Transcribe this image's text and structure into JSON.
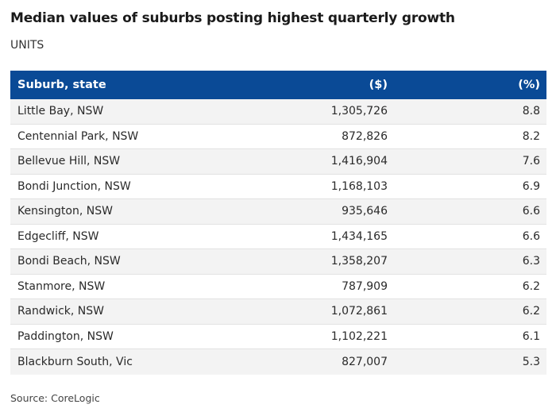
{
  "title": "Median values of suburbs posting highest quarterly growth",
  "subtitle": "UNITS",
  "source": "Source: CoreLogic",
  "colors": {
    "header_bg": "#0a4a96",
    "header_text": "#ffffff",
    "row_alt_bg": "#f3f3f3"
  },
  "chart_data": {
    "type": "table",
    "columns": [
      "Suburb, state",
      "($)",
      "(%)"
    ],
    "rows": [
      [
        "Little Bay, NSW",
        "1,305,726",
        "8.8"
      ],
      [
        "Centennial Park, NSW",
        "872,826",
        "8.2"
      ],
      [
        "Bellevue Hill, NSW",
        "1,416,904",
        "7.6"
      ],
      [
        "Bondi Junction, NSW",
        "1,168,103",
        "6.9"
      ],
      [
        "Kensington, NSW",
        "935,646",
        "6.6"
      ],
      [
        "Edgecliff, NSW",
        "1,434,165",
        "6.6"
      ],
      [
        "Bondi Beach, NSW",
        "1,358,207",
        "6.3"
      ],
      [
        "Stanmore, NSW",
        "787,909",
        "6.2"
      ],
      [
        "Randwick, NSW",
        "1,072,861",
        "6.2"
      ],
      [
        "Paddington, NSW",
        "1,102,221",
        "6.1"
      ],
      [
        "Blackburn South, Vic",
        "827,007",
        "5.3"
      ]
    ]
  }
}
